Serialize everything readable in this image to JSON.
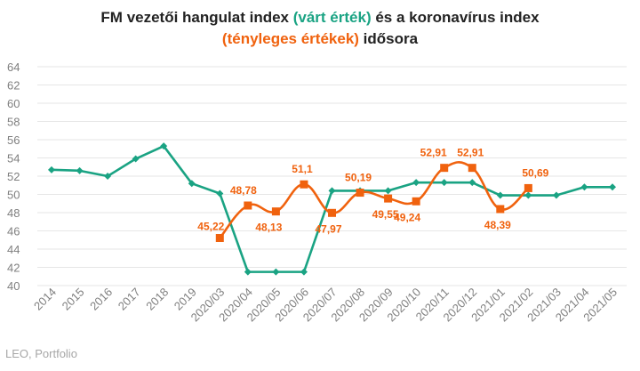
{
  "title": {
    "part1": "FM vezetői hangulat index ",
    "part2": "(várt érték)",
    "part3": " és a koronavírus index",
    "part4": "(tényleges értékek)",
    "part5": " idősora"
  },
  "source": "LEO, Portfolio",
  "colors": {
    "green": "#1aa383",
    "orange": "#f0620e",
    "grid": "#e6e6e6",
    "text": "#7f7f7f"
  },
  "chart_data": {
    "type": "line",
    "categories": [
      "2014",
      "2015",
      "2016",
      "2017",
      "2018",
      "2019",
      "2020/03",
      "2020/04",
      "2020/05",
      "2020/06",
      "2020/07",
      "2020/08",
      "2020/09",
      "2020/10",
      "2020/11",
      "2020/12",
      "2021/01",
      "2021/02",
      "2021/03",
      "2021/04",
      "2021/05"
    ],
    "ylim": [
      40,
      64
    ],
    "yticks": [
      "40",
      "42",
      "44",
      "46",
      "48",
      "50",
      "52",
      "54",
      "56",
      "58",
      "60",
      "62",
      "64"
    ],
    "grid": true,
    "series": [
      {
        "key": "green",
        "values": [
          52.7,
          52.6,
          52.0,
          53.9,
          55.3,
          51.2,
          50.1,
          41.5,
          41.5,
          41.5,
          50.4,
          50.4,
          50.4,
          51.3,
          51.3,
          51.3,
          49.9,
          49.9,
          49.9,
          50.8,
          50.8
        ]
      },
      {
        "key": "orange",
        "values": [
          null,
          null,
          null,
          null,
          null,
          null,
          45.22,
          48.78,
          48.13,
          51.1,
          47.97,
          50.19,
          49.55,
          49.24,
          52.91,
          52.91,
          48.39,
          50.69,
          null,
          null,
          null
        ],
        "labels": [
          "",
          "",
          "",
          "",
          "",
          "",
          "45,22",
          "48,78",
          "48,13",
          "51,1",
          "47,97",
          "50,19",
          "49,55",
          "49,24",
          "52,91",
          "52,91",
          "48,39",
          "50,69",
          "",
          "",
          ""
        ]
      }
    ]
  }
}
